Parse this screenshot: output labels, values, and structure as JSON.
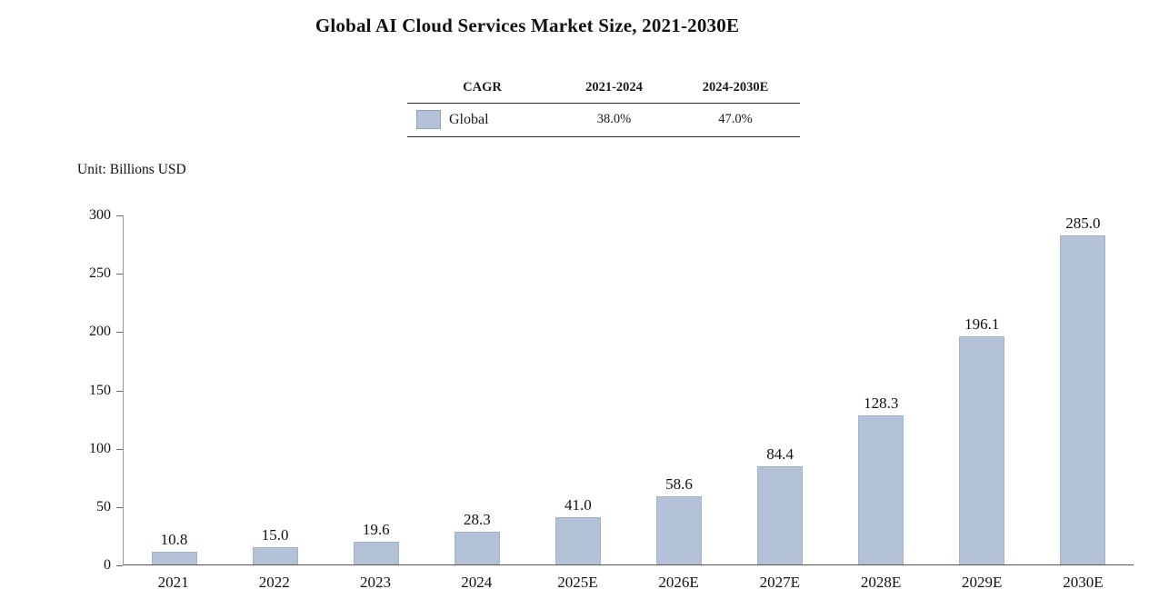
{
  "title": "Global AI Cloud Services Market Size, 2021-2030E",
  "unit_label": "Unit: Billions  USD",
  "cagr_table": {
    "headers": [
      "CAGR",
      "2021-2024",
      "2024-2030E"
    ],
    "rows": [
      {
        "label": "Global",
        "values": [
          "38.0%",
          "47.0%"
        ]
      }
    ]
  },
  "colors": {
    "bar_fill": "#b3c2d7",
    "bar_border": "#a2b2ca"
  },
  "chart_data": {
    "type": "bar",
    "title": "Global AI Cloud Services Market Size, 2021-2030E",
    "categories": [
      "2021",
      "2022",
      "2023",
      "2024",
      "2025E",
      "2026E",
      "2027E",
      "2028E",
      "2029E",
      "2030E"
    ],
    "values": [
      10.8,
      15.0,
      19.6,
      28.3,
      41.0,
      58.6,
      84.4,
      128.3,
      196.1,
      285.0
    ],
    "xlabel": "",
    "ylabel": "Unit: Billions USD",
    "ylim": [
      0,
      300
    ],
    "yticks": [
      0,
      50,
      100,
      150,
      200,
      250,
      300
    ],
    "grid": false,
    "legend_position": "none",
    "data_labels": true,
    "series_name": "Global",
    "cagr_2021_2024": "38.0%",
    "cagr_2024_2030E": "47.0%"
  }
}
